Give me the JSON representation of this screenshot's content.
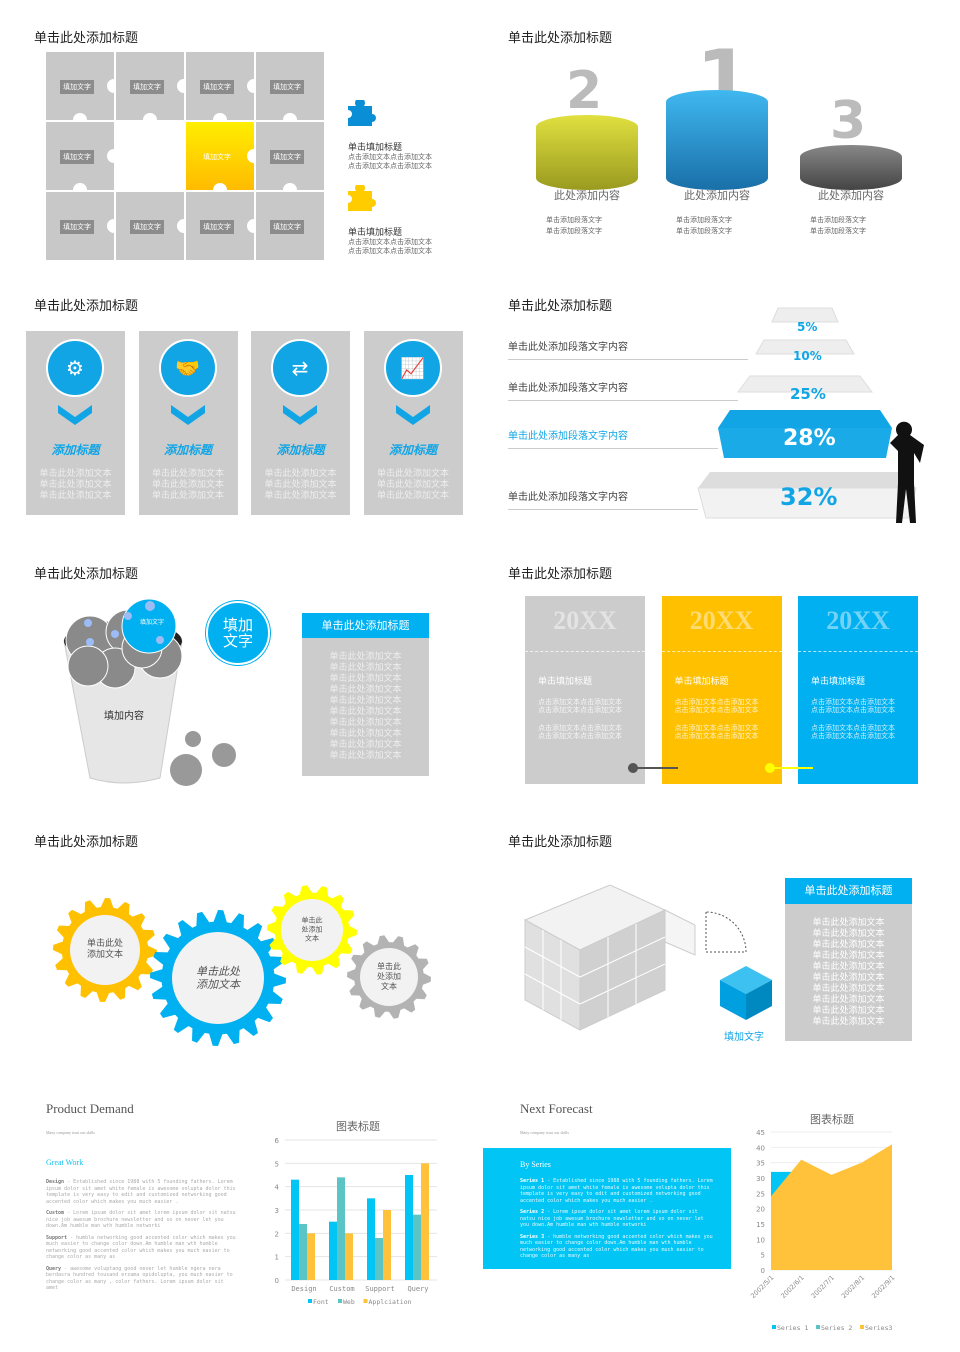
{
  "section_titles": [
    "单击此处添加标题",
    "单击此处添加标题",
    "单击此处添加标题",
    "单击此处添加标题",
    "单击此处添加标题",
    "单击此处添加标题",
    "单击此处添加标题",
    "单击此处添加标题"
  ],
  "puzzle": {
    "cell_label": "填加文字",
    "highlight_label": "填加文字",
    "items": [
      {
        "icon": "puzzle-blue-icon",
        "title": "单击填加标题",
        "lines": [
          "点击添加文本点击添加文本",
          "点击添加文本点击添加文本"
        ]
      },
      {
        "icon": "puzzle-yellow-icon",
        "title": "单击填加标题",
        "lines": [
          "点击添加文本点击添加文本",
          "点击添加文本点击添加文本"
        ]
      }
    ]
  },
  "podium": {
    "items": [
      {
        "rank": "2",
        "label": "此处添加内容",
        "bullets": [
          "单击添加段落文字",
          "单击添加段落文字"
        ]
      },
      {
        "rank": "1",
        "label": "此处添加内容",
        "bullets": [
          "单击添加段落文字",
          "单击添加段落文字"
        ]
      },
      {
        "rank": "3",
        "label": "此处添加内容",
        "bullets": [
          "单击添加段落文字",
          "单击添加段落文字"
        ]
      }
    ]
  },
  "icon_cards": [
    {
      "icon": "monitor-gear-icon",
      "title": "添加标题",
      "lines": [
        "单击此处添加文本",
        "单击此处添加文本",
        "单击此处添加文本"
      ]
    },
    {
      "icon": "handshake-icon",
      "title": "添加标题",
      "lines": [
        "单击此处添加文本",
        "单击此处添加文本",
        "单击此处添加文本"
      ]
    },
    {
      "icon": "exchange-icon",
      "title": "添加标题",
      "lines": [
        "单击此处添加文本",
        "单击此处添加文本",
        "单击此处添加文本"
      ]
    },
    {
      "icon": "line-chart-icon",
      "title": "添加标题",
      "lines": [
        "单击此处添加文本",
        "单击此处添加文本",
        "单击此处添加文本"
      ]
    }
  ],
  "pyramid": {
    "lines": [
      "单击此处添加段落文字内容",
      "单击此处添加段落文字内容",
      "单击此处添加段落文字内容",
      "单击此处添加段落文字内容"
    ],
    "levels": [
      "5%",
      "10%",
      "25%",
      "28%",
      "32%"
    ]
  },
  "cup": {
    "ball_label": "填加文字",
    "cup_label": "填加内容",
    "big_circle": "填加文字",
    "panel_title": "单击此处添加标题",
    "panel_lines": [
      "单击此处添加文本",
      "单击此处添加文本",
      "单击此处添加文本",
      "单击此处添加文本",
      "单击此处添加文本",
      "单击此处添加文本",
      "单击此处添加文本",
      "单击此处添加文本",
      "单击此处添加文本",
      "单击此处添加文本"
    ]
  },
  "timeline": {
    "colors": [
      "#cccccc",
      "#ffc000",
      "#00b0f0"
    ],
    "cards": [
      {
        "year": "20XX",
        "title": "单击填加标题",
        "p1": [
          "点击添加文本点击添加文本",
          "点击添加文本点击添加文本"
        ],
        "p2": [
          "点击添加文本点击添加文本",
          "点击添加文本点击添加文本"
        ]
      },
      {
        "year": "20XX",
        "title": "单击填加标题",
        "p1": [
          "点击添加文本点击添加文本",
          "点击添加文本点击添加文本"
        ],
        "p2": [
          "点击添加文本点击添加文本",
          "点击添加文本点击添加文本"
        ]
      },
      {
        "year": "20XX",
        "title": "单击填加标题",
        "p1": [
          "点击添加文本点击添加文本",
          "点击添加文本点击添加文本"
        ],
        "p2": [
          "点击添加文本点击添加文本",
          "点击添加文本点击添加文本"
        ]
      }
    ]
  },
  "gears": [
    {
      "text": "单击此处\n添加文本",
      "color": "#ffc000"
    },
    {
      "text": "单击此处\n添加文本",
      "color": "#00b0f0"
    },
    {
      "text": "单击此\n处添加\n文本",
      "color": "#ffff00"
    },
    {
      "text": "单击此\n处添加\n文本",
      "color": "#b3b3b3"
    }
  ],
  "cubes": {
    "label": "填加文字",
    "panel_title": "单击此处添加标题",
    "panel_lines": [
      "单击此处添加文本",
      "单击此处添加文本",
      "单击此处添加文本",
      "单击此处添加文本",
      "单击此处添加文本",
      "单击此处添加文本",
      "单击此处添加文本",
      "单击此处添加文本",
      "单击此处添加文本",
      "单击此处添加文本"
    ]
  },
  "product": {
    "title": "Product Demand",
    "subtitle": "Many company trust our skills",
    "heading": "Great Work",
    "paras": [
      [
        "Design",
        "- Established since 1988 with 5 founding fathers. Lorem ipsum dolor sit amet white female is awesome volupta dolor this template is very easy to edit and customized networking good accented color which makes you much easier ."
      ],
      [
        "Custom",
        "- Lorem ipsum dolor sit amet lorem ipsum dolor sit natsu nice job awesum brochure newsletter and so on never let you down.Am humble man wth humble networki"
      ],
      [
        "Support",
        "- humble networking good accented color which makes you much easier to change color down.Am humble man wth humble networking good accented color which makes you much easier to change color as many as"
      ],
      [
        "Query",
        "- awesome voluptang good never let humble ngera nera berdasra hundred tousand erzama opidolupta, you much easier to change color as many , color fathers. Lorem ipsum dolor sit amet"
      ]
    ]
  },
  "forecast": {
    "title": "Next Forecast",
    "subtitle": "Many company trust our skills",
    "heading": "By Series",
    "paras": [
      [
        "Series 1",
        "- Established since 1988 with 5 founding fathers. Lorem ipsum dolor sit amet white female is awesome volupta dolor this template is very easy to edit and customized networking good accented color which makes you much easier ."
      ],
      [
        "Series 2",
        "- Lorem ipsum dolor sit amet lorem ipsum dolor sit natsu nice job awesum brochure newsletter and so on never let you down.Am humble man wth humble networki"
      ],
      [
        "Series 3",
        "- humble networking good accented color which makes you much easier to change color down.Am humble man wth humble networking good accented color which makes you much easier to change color as many as"
      ]
    ]
  },
  "chart_data": [
    {
      "type": "bar",
      "title": "图表标题",
      "categories": [
        "Design",
        "Custom",
        "Support",
        "Query"
      ],
      "ylim": [
        0,
        6
      ],
      "yticks": [
        0,
        1,
        2,
        3,
        4,
        5,
        6
      ],
      "grid": true,
      "legend": "bottom",
      "series": [
        {
          "name": "Font",
          "color": "#00c5f5",
          "values": [
            4.3,
            2.5,
            3.5,
            4.5
          ]
        },
        {
          "name": "Web",
          "color": "#5bc4c4",
          "values": [
            2.4,
            4.4,
            1.8,
            2.8
          ]
        },
        {
          "name": "Applciation",
          "color": "#ffc23a",
          "values": [
            2.0,
            2.0,
            3.0,
            5.0
          ]
        }
      ]
    },
    {
      "type": "area",
      "title": "图表标题",
      "categories": [
        "2002/5/1",
        "2002/6/1",
        "2002/7/1",
        "2002/8/1",
        "2002/9/1"
      ],
      "ylim": [
        0,
        45
      ],
      "yticks": [
        0,
        5,
        10,
        15,
        20,
        25,
        30,
        35,
        40,
        45
      ],
      "grid": true,
      "legend": "bottom",
      "series": [
        {
          "name": "Series 1",
          "color": "#00c5f5",
          "values": [
            32,
            32,
            28,
            12,
            15
          ]
        },
        {
          "name": "Series 2",
          "color": "#5bc4c4",
          "values": [
            12,
            12,
            12,
            21,
            28
          ]
        },
        {
          "name": "Series3",
          "color": "#ffc23a",
          "values": [
            24,
            36,
            31,
            35,
            41
          ]
        }
      ]
    }
  ]
}
